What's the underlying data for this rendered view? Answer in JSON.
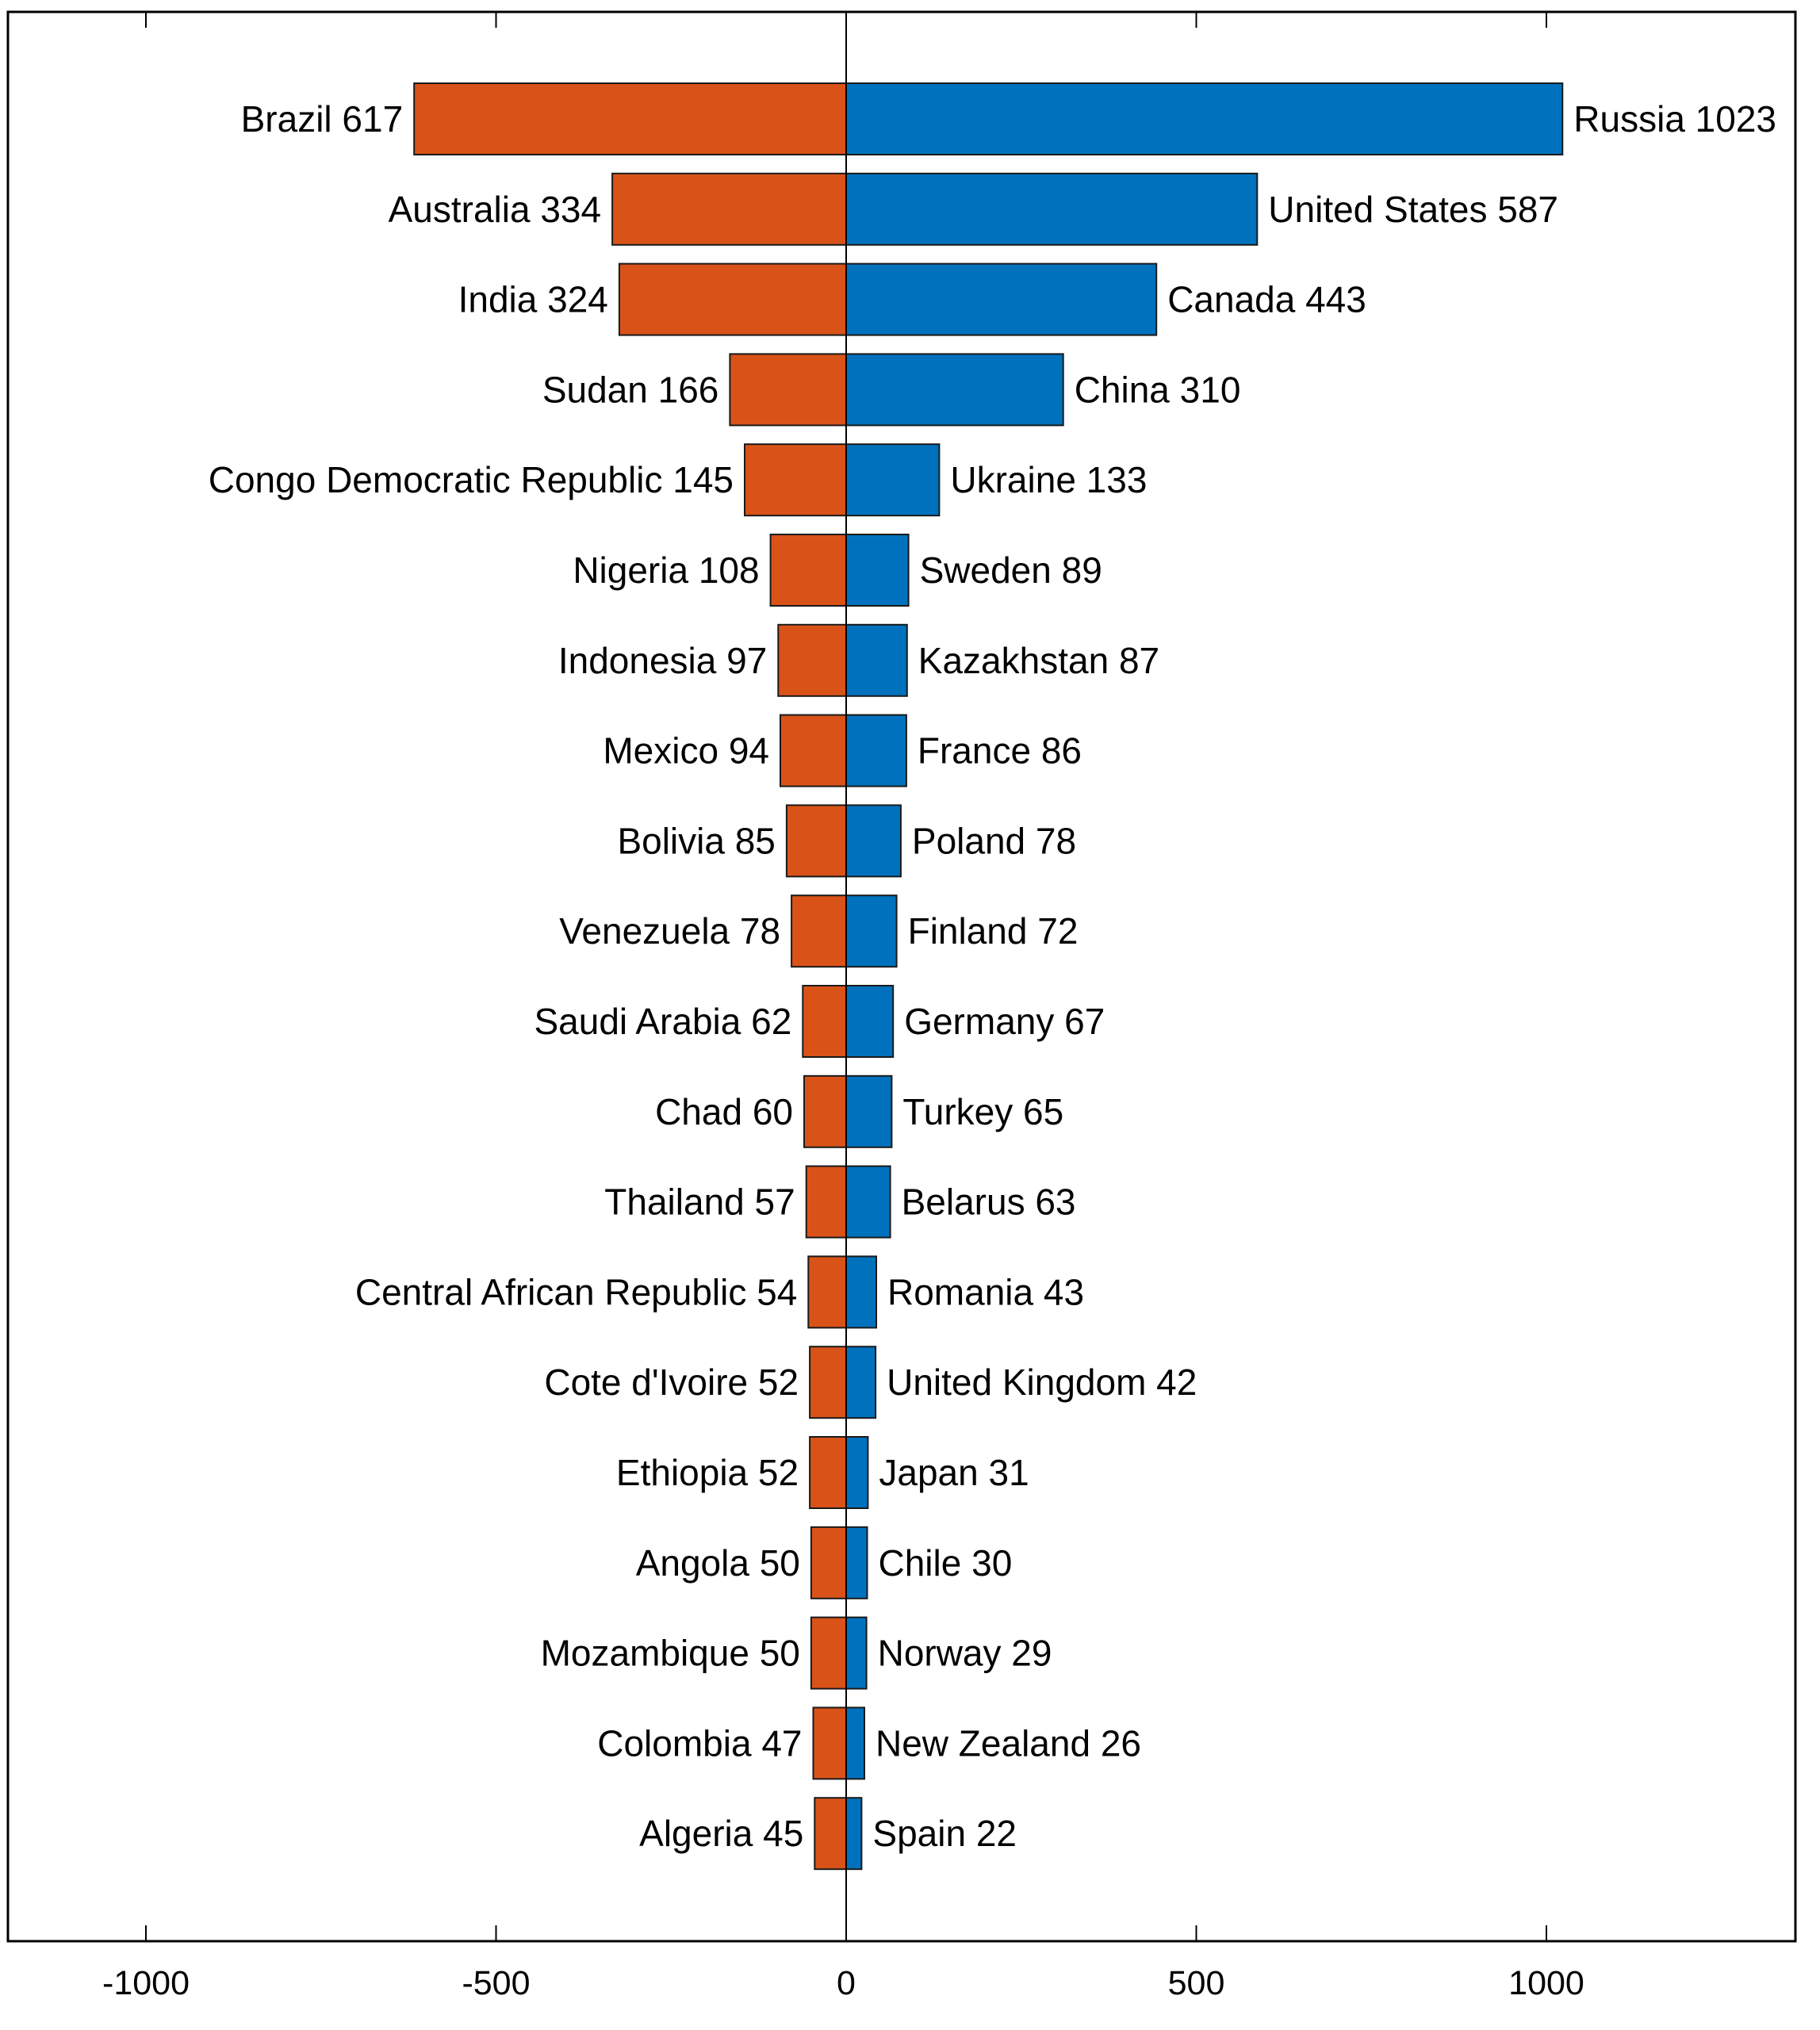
{
  "chart_data": {
    "type": "bar",
    "orientation": "horizontal",
    "layout": "diverging",
    "xlim": [
      -1000,
      1300
    ],
    "xticks": [
      -1000,
      -500,
      0,
      500,
      1000
    ],
    "xtick_labels": [
      "-1000",
      "-500",
      "0",
      "500",
      "1000"
    ],
    "grid": false,
    "title": "",
    "xlabel": "",
    "ylabel": "",
    "series": [
      {
        "side": "left",
        "color": "#D95319",
        "categories": [
          "Brazil",
          "Australia",
          "India",
          "Sudan",
          "Congo Democratic Republic",
          "Nigeria",
          "Indonesia",
          "Mexico",
          "Bolivia",
          "Venezuela",
          "Saudi Arabia",
          "Chad",
          "Thailand",
          "Central African Republic",
          "Cote d'Ivoire",
          "Ethiopia",
          "Angola",
          "Mozambique",
          "Colombia",
          "Algeria"
        ],
        "values": [
          617,
          334,
          324,
          166,
          145,
          108,
          97,
          94,
          85,
          78,
          62,
          60,
          57,
          54,
          52,
          52,
          50,
          50,
          47,
          45
        ],
        "labels": [
          "Brazil 617",
          "Australia 334",
          "India 324",
          "Sudan 166",
          "Congo Democratic Republic 145",
          "Nigeria 108",
          "Indonesia 97",
          "Mexico 94",
          "Bolivia 85",
          "Venezuela 78",
          "Saudi Arabia 62",
          "Chad 60",
          "Thailand 57",
          "Central African Republic 54",
          "Cote d'Ivoire 52",
          "Ethiopia 52",
          "Angola 50",
          "Mozambique 50",
          "Colombia 47",
          "Algeria 45"
        ]
      },
      {
        "side": "right",
        "color": "#0072BD",
        "categories": [
          "Russia",
          "United States",
          "Canada",
          "China",
          "Ukraine",
          "Sweden",
          "Kazakhstan",
          "France",
          "Poland",
          "Finland",
          "Germany",
          "Turkey",
          "Belarus",
          "Romania",
          "United Kingdom",
          "Japan",
          "Chile",
          "Norway",
          "New Zealand",
          "Spain"
        ],
        "values": [
          1023,
          587,
          443,
          310,
          133,
          89,
          87,
          86,
          78,
          72,
          67,
          65,
          63,
          43,
          42,
          31,
          30,
          29,
          26,
          22
        ],
        "labels": [
          "Russia 1023",
          "United States 587",
          "Canada 443",
          "China 310",
          "Ukraine 133",
          "Sweden 89",
          "Kazakhstan 87",
          "France 86",
          "Poland 78",
          "Finland 72",
          "Germany 67",
          "Turkey 65",
          "Belarus 63",
          "Romania 43",
          "United Kingdom 42",
          "Japan 31",
          "Chile 30",
          "Norway 29",
          "New Zealand 26",
          "Spain 22"
        ]
      }
    ]
  }
}
